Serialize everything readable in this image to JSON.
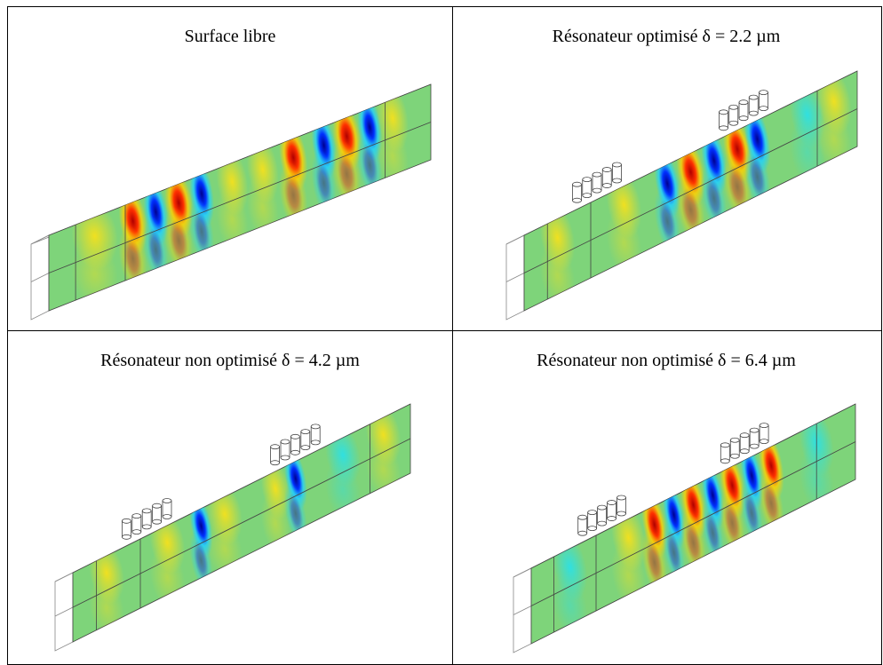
{
  "panels": [
    {
      "title": "Surface libre"
    },
    {
      "title": "Résonateur optimisé δ = 2.2 µm"
    },
    {
      "title": "Résonateur non optimisé δ = 4.2 µm"
    },
    {
      "title": "Résonateur non optimisé δ = 6.4 µm"
    }
  ]
}
